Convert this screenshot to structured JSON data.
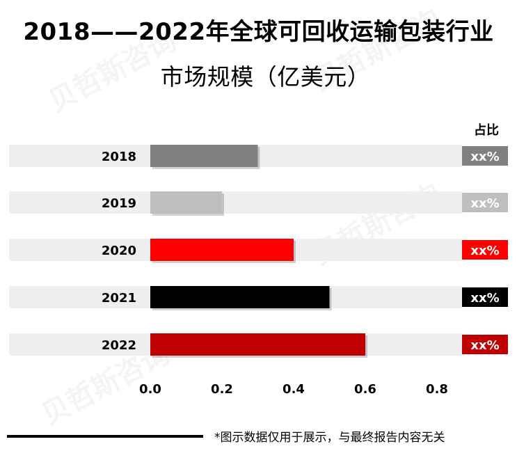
{
  "title": {
    "line1": "2018——2022年全球可回收运输包装行业",
    "line2": "市场规模（亿美元）"
  },
  "footnote": "*图示数据仅用于展示，与最终报告内容无关",
  "watermark": "贝哲斯咨询",
  "colors": {
    "track": "#efefef",
    "bars": [
      "#808080",
      "#bfbfbf",
      "#ff0000",
      "#000000",
      "#c00000"
    ]
  },
  "chart_data": {
    "type": "bar",
    "orientation": "horizontal",
    "title": "2018——2022年全球可回收运输包装行业市场规模（亿美元）",
    "categories": [
      "2018",
      "2019",
      "2020",
      "2021",
      "2022"
    ],
    "values": [
      0.3,
      0.2,
      0.4,
      0.5,
      0.6
    ],
    "xlim": [
      0,
      0.8
    ],
    "xticks": [
      "0.0",
      "0.2",
      "0.4",
      "0.6",
      "0.8"
    ],
    "share_header": "占比",
    "share_labels": [
      "xx%",
      "xx%",
      "xx%",
      "xx%",
      "xx%"
    ],
    "grid": false
  }
}
